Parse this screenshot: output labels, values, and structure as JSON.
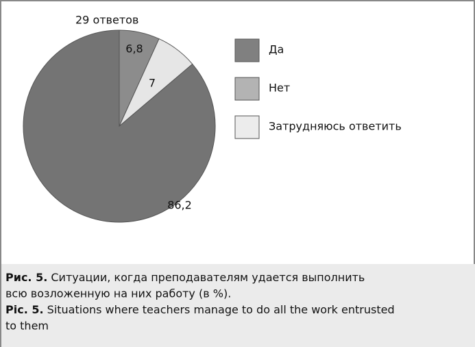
{
  "chart_data": {
    "type": "pie",
    "subtitle": "29 ответов",
    "categories": [
      "Да",
      "Нет",
      "Затрудняюсь ответить"
    ],
    "legend_colors": [
      "#808080",
      "#b3b3b3",
      "#ececec"
    ],
    "values": [
      6.8,
      7,
      86.2
    ],
    "value_labels": [
      "6,8",
      "7",
      "86,2"
    ],
    "colors": [
      "#8c8c8c",
      "#e6e6e6",
      "#747474"
    ],
    "legend": "right"
  },
  "caption": {
    "ru_label": "Рис. 5.",
    "ru_lines": [
      "Ситуации, когда преподавателям удается выполнить",
      "всю возложенную на них работу (в %)."
    ],
    "en_label": "Pic. 5.",
    "en_lines": [
      "Situations where teachers manage to do all the work entrusted",
      "to them"
    ]
  }
}
